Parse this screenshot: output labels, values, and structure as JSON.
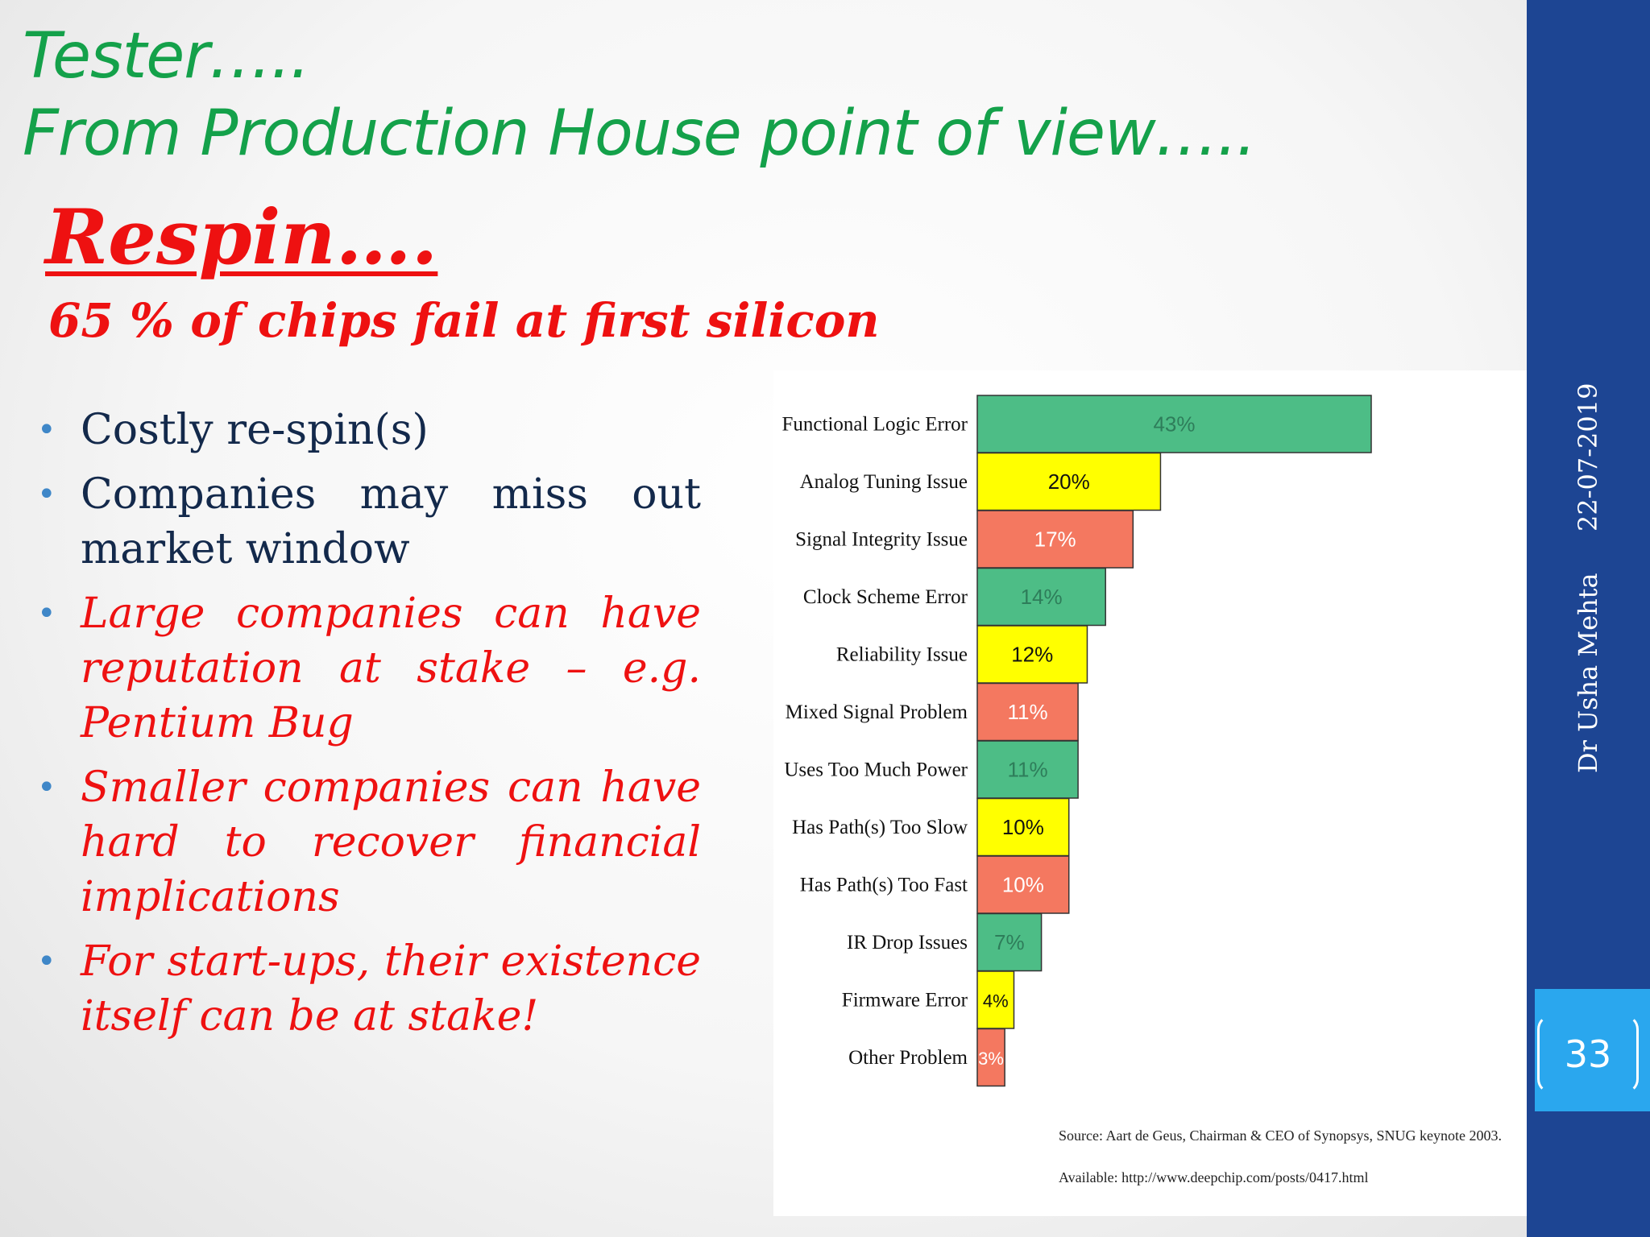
{
  "slide": {
    "title_line1": "Tester…..",
    "title_line2": "From Production House point of view…..",
    "heading": "Respin….",
    "subheading": "65 % of chips fail at first silicon",
    "bullets": [
      {
        "text": "Costly re-spin(s)",
        "style": "dark"
      },
      {
        "text": "Companies may miss out market window",
        "style": "dark"
      },
      {
        "text": "Large companies can have reputation at stake  – e.g. Pentium Bug",
        "style": "red"
      },
      {
        "text": "Smaller companies can have hard to recover financial implications",
        "style": "red"
      },
      {
        "text": "For start-ups, their existence itself can be at stake!",
        "style": "red"
      }
    ],
    "date": "22-07-2019",
    "author": "Dr Usha Mehta",
    "page_number": "33"
  },
  "colors": {
    "title_green": "#14a14a",
    "heading_red": "#ee1111",
    "sidebar_blue": "#1d4593",
    "page_box_blue": "#2aa7ee",
    "bar_green": "#4dbd86",
    "bar_yellow": "#ffff00",
    "bar_salmon": "#f47860"
  },
  "chart_data": {
    "type": "bar",
    "orientation": "horizontal",
    "categories": [
      "Functional Logic Error",
      "Analog Tuning Issue",
      "Signal Integrity Issue",
      "Clock Scheme Error",
      "Reliability Issue",
      "Mixed Signal Problem",
      "Uses Too Much Power",
      "Has Path(s) Too Slow",
      "Has Path(s) Too Fast",
      "IR Drop Issues",
      "Firmware Error",
      "Other Problem"
    ],
    "values": [
      43,
      20,
      17,
      14,
      12,
      11,
      11,
      10,
      10,
      7,
      4,
      3
    ],
    "data_labels": [
      "43%",
      "20%",
      "17%",
      "14%",
      "12%",
      "11%",
      "11%",
      "10%",
      "10%",
      "7%",
      "4%",
      "3%"
    ],
    "bar_colors": [
      "green",
      "yellow",
      "salmon",
      "green",
      "yellow",
      "salmon",
      "green",
      "yellow",
      "salmon",
      "green",
      "yellow",
      "salmon"
    ],
    "title": "",
    "xlabel": "",
    "ylabel": "",
    "grid": false,
    "source_line1": "Source: Aart de Geus,      Chairman & CEO of Synopsys, SNUG keynote 2003.",
    "source_line2": "Available: http://www.deepchip.com/posts/0417.html"
  }
}
